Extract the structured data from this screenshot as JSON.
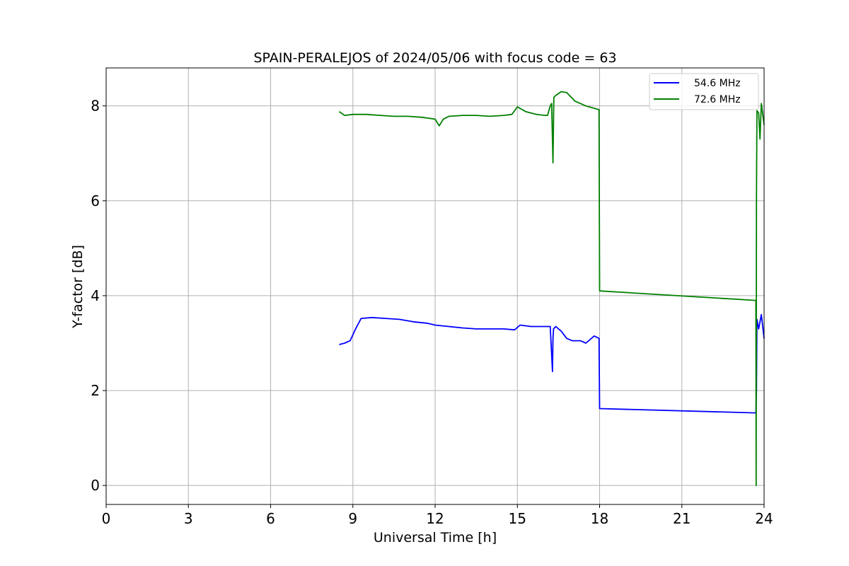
{
  "chart_data": {
    "type": "line",
    "title": "SPAIN-PERALEJOS of 2024/05/06 with focus code = 63",
    "xlabel": "Universal Time [h]",
    "ylabel": "Y-factor [dB]",
    "xlim": [
      0,
      24
    ],
    "ylim": [
      -0.4,
      8.8
    ],
    "xticks": [
      0,
      3,
      6,
      9,
      12,
      15,
      18,
      21,
      24
    ],
    "yticks": [
      0,
      2,
      4,
      6,
      8
    ],
    "grid": true,
    "legend_position": "top-right",
    "series": [
      {
        "name": "54.6 MHz",
        "color": "#0000ff",
        "x": [
          8.5,
          8.7,
          8.9,
          9.1,
          9.3,
          9.7,
          10.2,
          10.7,
          11.2,
          11.7,
          12.0,
          12.5,
          13.0,
          13.5,
          14.0,
          14.5,
          14.9,
          15.1,
          15.5,
          16.0,
          16.2,
          16.28,
          16.3,
          16.32,
          16.4,
          16.6,
          16.8,
          17.0,
          17.3,
          17.5,
          17.8,
          17.98,
          18.0,
          23.7,
          23.72,
          23.74,
          23.8,
          23.9,
          24.0
        ],
        "y": [
          2.97,
          3.0,
          3.05,
          3.3,
          3.52,
          3.54,
          3.52,
          3.5,
          3.45,
          3.42,
          3.38,
          3.35,
          3.32,
          3.3,
          3.3,
          3.3,
          3.28,
          3.38,
          3.35,
          3.35,
          3.35,
          2.4,
          3.1,
          3.3,
          3.35,
          3.25,
          3.1,
          3.05,
          3.05,
          3.0,
          3.15,
          3.1,
          1.62,
          1.53,
          2.0,
          3.5,
          3.3,
          3.6,
          3.1
        ]
      },
      {
        "name": "72.6 MHz",
        "color": "#008000",
        "x": [
          8.5,
          8.7,
          9.0,
          9.5,
          10.0,
          10.5,
          11.0,
          11.5,
          12.0,
          12.15,
          12.3,
          12.5,
          13.0,
          13.5,
          14.0,
          14.5,
          14.8,
          15.0,
          15.3,
          15.7,
          16.0,
          16.1,
          16.2,
          16.25,
          16.3,
          16.33,
          16.4,
          16.6,
          16.8,
          17.1,
          17.5,
          17.8,
          17.98,
          18.0,
          23.7,
          23.71,
          23.72,
          23.74,
          23.8,
          23.85,
          23.9,
          24.0
        ],
        "y": [
          7.88,
          7.8,
          7.82,
          7.82,
          7.8,
          7.78,
          7.78,
          7.76,
          7.72,
          7.58,
          7.72,
          7.78,
          7.8,
          7.8,
          7.78,
          7.8,
          7.82,
          7.98,
          7.88,
          7.82,
          7.8,
          7.8,
          8.0,
          8.05,
          6.8,
          8.18,
          8.22,
          8.3,
          8.28,
          8.1,
          8.0,
          7.95,
          7.92,
          4.1,
          3.9,
          0.0,
          6.0,
          7.9,
          7.85,
          7.3,
          8.05,
          7.6
        ]
      }
    ]
  }
}
